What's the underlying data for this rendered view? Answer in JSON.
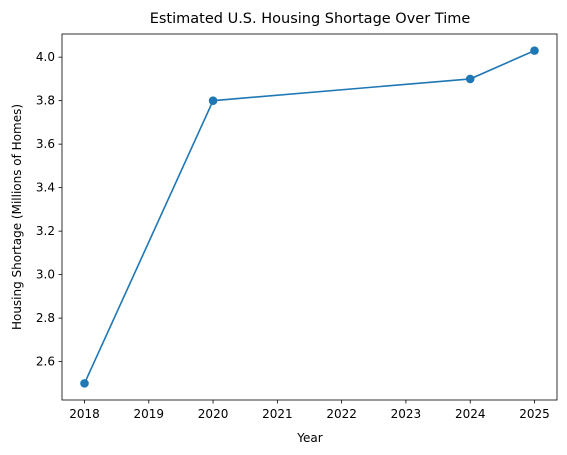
{
  "chart_data": {
    "type": "line",
    "title": "Estimated U.S. Housing Shortage Over Time",
    "xlabel": "Year",
    "ylabel": "Housing Shortage (Millions of Homes)",
    "x": [
      2018,
      2020,
      2024,
      2025
    ],
    "series": [
      {
        "values": [
          2.5,
          3.8,
          3.9,
          4.03
        ],
        "color": "#1f77b4"
      }
    ],
    "xticks": [
      2018,
      2019,
      2020,
      2021,
      2022,
      2023,
      2024,
      2025
    ],
    "yticks": [
      2.6,
      2.8,
      3.0,
      3.2,
      3.4,
      3.6,
      3.8,
      4.0
    ],
    "xlim": [
      2017.65,
      2025.35
    ],
    "ylim": [
      2.4235,
      4.1065
    ],
    "grid": false,
    "legend": "none"
  }
}
